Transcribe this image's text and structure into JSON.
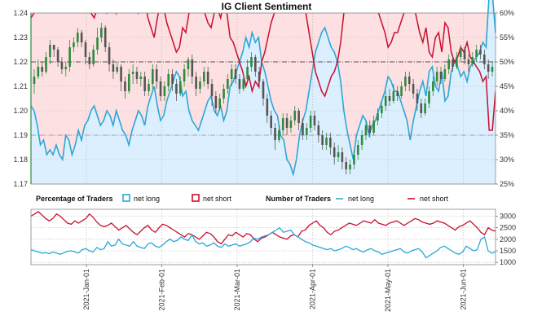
{
  "chart_data": [
    {
      "type": "candlestick-with-area",
      "title": "IG Client Sentiment",
      "x_ticks": [
        "2021-Jan-01",
        "2021-Feb-01",
        "2021-Mar-01",
        "2021-Apr-01",
        "2021-May-01",
        "2021-Jun-01"
      ],
      "y_left": {
        "ticks": [
          "1.17",
          "1.18",
          "1.19",
          "1.20",
          "1.21",
          "1.22",
          "1.23",
          "1.24"
        ],
        "range": [
          1.17,
          1.24
        ]
      },
      "y_right": {
        "ticks": [
          "25%",
          "30%",
          "35%",
          "40%",
          "45%",
          "50%",
          "55%",
          "60%"
        ],
        "range": [
          25,
          60
        ]
      },
      "net_long_pct": [
        41,
        40,
        37,
        33,
        34,
        31,
        32,
        31,
        33,
        31,
        30,
        35,
        34,
        31,
        33,
        36,
        34,
        37,
        38,
        40,
        41,
        39,
        37,
        38,
        40,
        39,
        37,
        40,
        38,
        36,
        35,
        33,
        36,
        38,
        40,
        39,
        37,
        41,
        43,
        45,
        41,
        38,
        39,
        42,
        44,
        46,
        48,
        47,
        43,
        44,
        40,
        38,
        37,
        36,
        38,
        40,
        42,
        43,
        40,
        39,
        41,
        38,
        40,
        45,
        46,
        48,
        50,
        52,
        55,
        53,
        56,
        54,
        55,
        50,
        48,
        45,
        42,
        40,
        39,
        35,
        34,
        30,
        29,
        27,
        30,
        35,
        38,
        40,
        44,
        48,
        52,
        54,
        56,
        57,
        55,
        53,
        52,
        50,
        46,
        40,
        36,
        33,
        30,
        35,
        37,
        39,
        38,
        35,
        37,
        38,
        40,
        42,
        44,
        47,
        46,
        44,
        44,
        42,
        40,
        38,
        34,
        38,
        41,
        44,
        46,
        43,
        48,
        49,
        45,
        44,
        48,
        42,
        43,
        48,
        50,
        49,
        47,
        48,
        46,
        49,
        50,
        51,
        52,
        54,
        53,
        64,
        64,
        56
      ],
      "candles": [
        [
          1.211,
          1.214,
          1.207,
          1.217
        ],
        [
          1.214,
          1.218,
          1.213,
          1.221
        ],
        [
          1.218,
          1.216,
          1.214,
          1.22
        ],
        [
          1.216,
          1.222,
          1.215,
          1.224
        ],
        [
          1.222,
          1.227,
          1.219,
          1.229
        ],
        [
          1.227,
          1.225,
          1.222,
          1.227
        ],
        [
          1.225,
          1.22,
          1.218,
          1.226
        ],
        [
          1.22,
          1.217,
          1.215,
          1.222
        ],
        [
          1.217,
          1.218,
          1.214,
          1.22
        ],
        [
          1.218,
          1.226,
          1.216,
          1.229
        ],
        [
          1.226,
          1.228,
          1.224,
          1.23
        ],
        [
          1.228,
          1.232,
          1.226,
          1.234
        ],
        [
          1.232,
          1.228,
          1.226,
          1.233
        ],
        [
          1.228,
          1.222,
          1.219,
          1.229
        ],
        [
          1.222,
          1.219,
          1.217,
          1.224
        ],
        [
          1.219,
          1.225,
          1.218,
          1.227
        ],
        [
          1.225,
          1.23,
          1.223,
          1.234
        ],
        [
          1.23,
          1.234,
          1.228,
          1.236
        ],
        [
          1.234,
          1.226,
          1.224,
          1.235
        ],
        [
          1.226,
          1.219,
          1.216,
          1.228
        ],
        [
          1.219,
          1.216,
          1.213,
          1.221
        ],
        [
          1.216,
          1.218,
          1.215,
          1.22
        ],
        [
          1.218,
          1.212,
          1.208,
          1.219
        ],
        [
          1.212,
          1.208,
          1.205,
          1.214
        ],
        [
          1.208,
          1.215,
          1.207,
          1.217
        ],
        [
          1.215,
          1.216,
          1.211,
          1.219
        ],
        [
          1.216,
          1.213,
          1.211,
          1.218
        ],
        [
          1.213,
          1.214,
          1.21,
          1.216
        ],
        [
          1.214,
          1.208,
          1.206,
          1.216
        ],
        [
          1.208,
          1.211,
          1.206,
          1.213
        ],
        [
          1.211,
          1.217,
          1.209,
          1.219
        ],
        [
          1.217,
          1.212,
          1.209,
          1.219
        ],
        [
          1.212,
          1.206,
          1.204,
          1.214
        ],
        [
          1.206,
          1.21,
          1.204,
          1.212
        ],
        [
          1.21,
          1.215,
          1.208,
          1.217
        ],
        [
          1.215,
          1.211,
          1.208,
          1.217
        ],
        [
          1.211,
          1.207,
          1.204,
          1.213
        ],
        [
          1.207,
          1.212,
          1.206,
          1.214
        ],
        [
          1.212,
          1.217,
          1.21,
          1.219
        ],
        [
          1.217,
          1.221,
          1.214,
          1.222
        ],
        [
          1.221,
          1.214,
          1.211,
          1.223
        ],
        [
          1.214,
          1.209,
          1.206,
          1.216
        ],
        [
          1.209,
          1.212,
          1.207,
          1.214
        ],
        [
          1.212,
          1.216,
          1.21,
          1.218
        ],
        [
          1.216,
          1.211,
          1.209,
          1.218
        ],
        [
          1.211,
          1.206,
          1.202,
          1.213
        ],
        [
          1.206,
          1.201,
          1.199,
          1.208
        ],
        [
          1.201,
          1.205,
          1.2,
          1.207
        ],
        [
          1.205,
          1.209,
          1.203,
          1.211
        ],
        [
          1.209,
          1.213,
          1.207,
          1.215
        ],
        [
          1.213,
          1.217,
          1.21,
          1.219
        ],
        [
          1.217,
          1.213,
          1.211,
          1.219
        ],
        [
          1.213,
          1.209,
          1.207,
          1.215
        ],
        [
          1.209,
          1.213,
          1.208,
          1.215
        ],
        [
          1.213,
          1.218,
          1.212,
          1.221
        ],
        [
          1.218,
          1.222,
          1.216,
          1.224
        ],
        [
          1.222,
          1.216,
          1.214,
          1.223
        ],
        [
          1.216,
          1.212,
          1.209,
          1.218
        ],
        [
          1.212,
          1.205,
          1.202,
          1.213
        ],
        [
          1.205,
          1.198,
          1.195,
          1.207
        ],
        [
          1.198,
          1.193,
          1.19,
          1.2
        ],
        [
          1.193,
          1.188,
          1.184,
          1.195
        ],
        [
          1.188,
          1.192,
          1.187,
          1.194
        ],
        [
          1.192,
          1.197,
          1.19,
          1.199
        ],
        [
          1.197,
          1.193,
          1.19,
          1.199
        ],
        [
          1.193,
          1.196,
          1.191,
          1.198
        ],
        [
          1.196,
          1.2,
          1.194,
          1.202
        ],
        [
          1.2,
          1.195,
          1.192,
          1.201
        ],
        [
          1.195,
          1.19,
          1.188,
          1.197
        ],
        [
          1.19,
          1.193,
          1.188,
          1.195
        ],
        [
          1.193,
          1.198,
          1.191,
          1.2
        ],
        [
          1.198,
          1.194,
          1.192,
          1.2
        ],
        [
          1.194,
          1.19,
          1.187,
          1.196
        ],
        [
          1.19,
          1.186,
          1.184,
          1.192
        ],
        [
          1.186,
          1.189,
          1.184,
          1.191
        ],
        [
          1.189,
          1.185,
          1.182,
          1.191
        ],
        [
          1.185,
          1.181,
          1.178,
          1.187
        ],
        [
          1.181,
          1.183,
          1.179,
          1.186
        ],
        [
          1.183,
          1.179,
          1.176,
          1.185
        ],
        [
          1.179,
          1.176,
          1.174,
          1.181
        ],
        [
          1.176,
          1.178,
          1.174,
          1.18
        ],
        [
          1.178,
          1.182,
          1.176,
          1.184
        ],
        [
          1.182,
          1.186,
          1.18,
          1.188
        ],
        [
          1.186,
          1.19,
          1.184,
          1.192
        ],
        [
          1.19,
          1.194,
          1.188,
          1.196
        ],
        [
          1.194,
          1.191,
          1.189,
          1.196
        ],
        [
          1.191,
          1.196,
          1.19,
          1.198
        ],
        [
          1.196,
          1.199,
          1.194,
          1.201
        ],
        [
          1.199,
          1.202,
          1.197,
          1.204
        ],
        [
          1.202,
          1.206,
          1.2,
          1.208
        ],
        [
          1.206,
          1.204,
          1.202,
          1.209
        ],
        [
          1.204,
          1.208,
          1.203,
          1.211
        ],
        [
          1.208,
          1.206,
          1.204,
          1.21
        ],
        [
          1.206,
          1.21,
          1.205,
          1.212
        ],
        [
          1.21,
          1.214,
          1.208,
          1.216
        ],
        [
          1.214,
          1.211,
          1.208,
          1.216
        ],
        [
          1.211,
          1.207,
          1.205,
          1.213
        ],
        [
          1.207,
          1.203,
          1.2,
          1.209
        ],
        [
          1.203,
          1.199,
          1.197,
          1.205
        ],
        [
          1.199,
          1.203,
          1.198,
          1.205
        ],
        [
          1.203,
          1.208,
          1.201,
          1.21
        ],
        [
          1.208,
          1.212,
          1.206,
          1.214
        ],
        [
          1.212,
          1.216,
          1.21,
          1.218
        ],
        [
          1.216,
          1.213,
          1.211,
          1.218
        ],
        [
          1.213,
          1.217,
          1.212,
          1.219
        ],
        [
          1.217,
          1.221,
          1.215,
          1.223
        ],
        [
          1.221,
          1.218,
          1.216,
          1.223
        ],
        [
          1.218,
          1.222,
          1.217,
          1.224
        ],
        [
          1.222,
          1.225,
          1.22,
          1.227
        ],
        [
          1.225,
          1.221,
          1.219,
          1.226
        ],
        [
          1.221,
          1.219,
          1.216,
          1.223
        ],
        [
          1.219,
          1.222,
          1.218,
          1.224
        ],
        [
          1.222,
          1.225,
          1.22,
          1.227
        ],
        [
          1.225,
          1.223,
          1.221,
          1.227
        ],
        [
          1.223,
          1.219,
          1.217,
          1.225
        ],
        [
          1.219,
          1.216,
          1.213,
          1.221
        ],
        [
          1.216,
          1.218,
          1.214,
          1.22
        ]
      ],
      "ref_left_levels": [
        1.22,
        1.19
      ],
      "panel2": {
        "legend_pct_title": "Percentage of Traders",
        "legend_num_title": "Number of Traders",
        "legend_long": "net long",
        "legend_short": "net short",
        "y_right": {
          "ticks": [
            "1000",
            "1500",
            "2000",
            "2500",
            "3000"
          ],
          "range": [
            900,
            3300
          ]
        },
        "num_long": [
          1550,
          1500,
          1450,
          1400,
          1420,
          1380,
          1450,
          1400,
          1350,
          1420,
          1480,
          1500,
          1450,
          1400,
          1550,
          1600,
          1500,
          1450,
          1650,
          1550,
          1600,
          1900,
          1700,
          1750,
          2000,
          1800,
          1750,
          1700,
          1900,
          1700,
          1650,
          1600,
          1800,
          1850,
          1700,
          1650,
          1750,
          1900,
          2000,
          1900,
          1950,
          2100,
          2000,
          1950,
          2200,
          1900,
          1800,
          1850,
          1700,
          1750,
          1850,
          1700,
          1650,
          1800,
          1700,
          1750,
          1800,
          1700,
          1750,
          1800,
          1900,
          2050,
          2000,
          2100,
          2150,
          2200,
          2300,
          2400,
          2500,
          2300,
          2350,
          2400,
          2200,
          2100,
          2000,
          1900,
          1850,
          1750,
          1700,
          1650,
          1600,
          1550,
          1600,
          1500,
          1550,
          1600,
          1700,
          1650,
          1550,
          1600,
          1500,
          1450,
          1550,
          1600,
          1500,
          1450,
          1350,
          1400,
          1450,
          1500,
          1550,
          1600,
          1450,
          1400,
          1500,
          1550,
          1600,
          1450,
          1200,
          1300,
          1400,
          1500,
          1650,
          1700,
          1600,
          1500,
          1400,
          1350,
          1450,
          1700,
          1600,
          1500,
          1550,
          2000,
          2100,
          1500,
          1400,
          1450
        ],
        "num_short": [
          3000,
          3100,
          3200,
          3050,
          2900,
          2800,
          2900,
          3100,
          3000,
          2850,
          2700,
          2650,
          2800,
          2700,
          2800,
          2900,
          3100,
          2950,
          2750,
          2600,
          2550,
          2600,
          2700,
          2550,
          2400,
          2500,
          2600,
          2450,
          2300,
          2200,
          2350,
          2500,
          2600,
          2400,
          2300,
          2500,
          2650,
          2600,
          2500,
          2400,
          2300,
          2200,
          2100,
          2250,
          2200,
          2100,
          2000,
          2150,
          2300,
          2250,
          2100,
          1900,
          1800,
          2000,
          2200,
          2150,
          2300,
          2200,
          2100,
          2250,
          2200,
          2000,
          1900,
          2050,
          2100,
          2200,
          2300,
          2200,
          2100,
          2050,
          2000,
          2150,
          2200,
          2100,
          2350,
          2400,
          2600,
          2700,
          2800,
          2600,
          2500,
          2300,
          2200,
          2350,
          2400,
          2500,
          2600,
          2700,
          2650,
          2600,
          2700,
          2800,
          2750,
          2700,
          2850,
          2700,
          2650,
          2600,
          2700,
          2750,
          2800,
          2700,
          2600,
          2700,
          2800,
          2900,
          2850,
          2750,
          2700,
          2650,
          2700,
          2800,
          2750,
          2700,
          2600,
          2500,
          2400,
          2550,
          2600,
          2700,
          2800,
          2650,
          2500,
          2300,
          2200,
          2500,
          2400,
          2350
        ]
      }
    }
  ],
  "colors": {
    "long": "#29a8d8",
    "short": "#c8102e",
    "bull": "#2e8b3e",
    "bear": "#555555",
    "fill_long": "#dcefff",
    "fill_short": "#fde0e2",
    "axis_accent": "#2e8b3e"
  }
}
